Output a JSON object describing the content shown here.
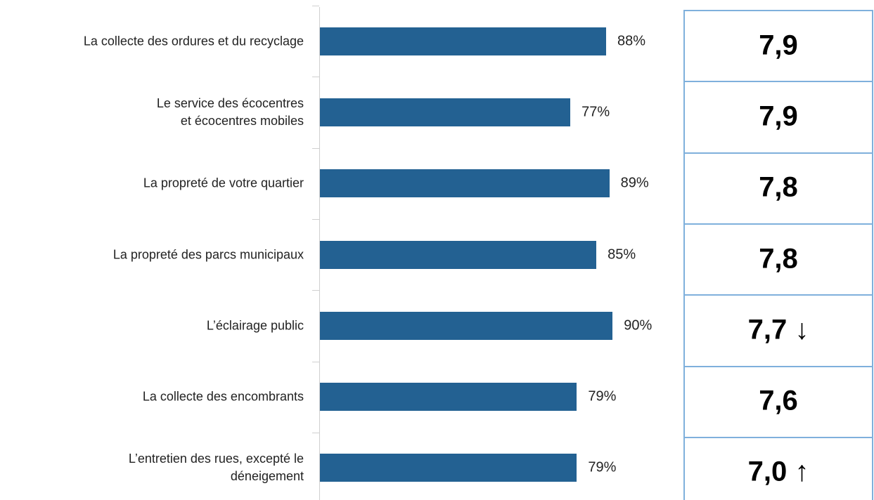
{
  "chart_data": {
    "type": "bar",
    "orientation": "horizontal",
    "categories": [
      "La collecte des ordures et du recyclage",
      "Le service des écocentres\net écocentres mobiles",
      "La propreté de votre quartier",
      "La propreté des parcs municipaux",
      "L’éclairage public",
      "La collecte des encombrants",
      "L’entretien des rues, excepté le\ndéneigement"
    ],
    "values": [
      88,
      77,
      89,
      85,
      90,
      79,
      79
    ],
    "value_labels": [
      "88%",
      "77%",
      "89%",
      "85%",
      "90%",
      "79%",
      "79%"
    ],
    "color": "#236192",
    "xlim": [
      0,
      100
    ],
    "scores": [
      "7,9",
      "7,9",
      "7,8",
      "7,8",
      "7,7 ↓",
      "7,6",
      "7,0 ↑"
    ]
  }
}
